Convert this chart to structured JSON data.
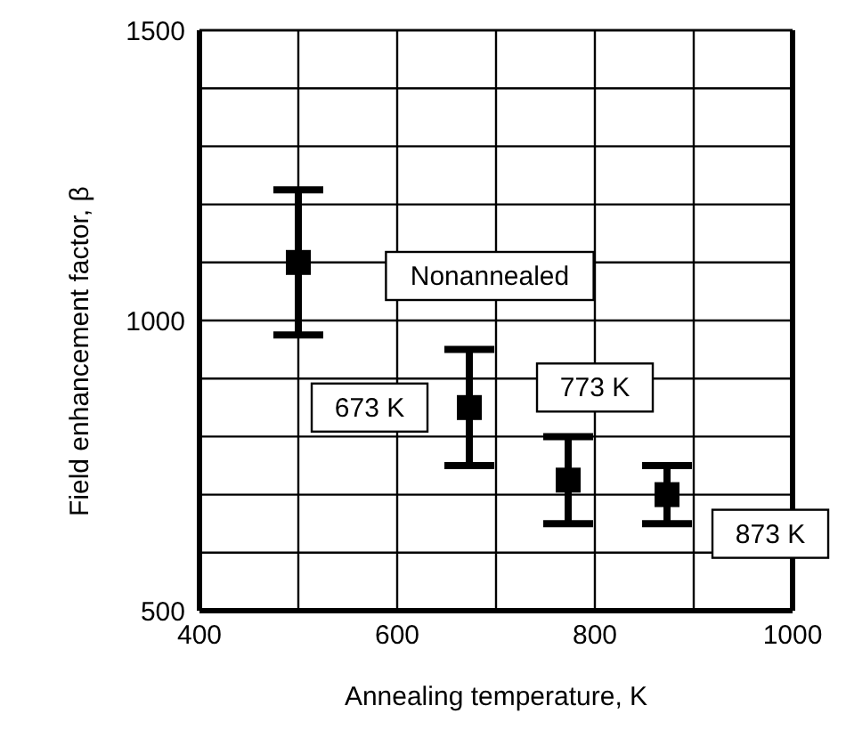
{
  "chart_data": {
    "type": "scatter",
    "xlabel": "Annealing temperature, K",
    "ylabel": "Field enhancement factor, β",
    "x": [
      500,
      673,
      773,
      873
    ],
    "values": [
      1100,
      850,
      725,
      700
    ],
    "errors": [
      125,
      100,
      75,
      50
    ],
    "color": "#000000",
    "marker": "square",
    "xlim": [
      400,
      1000
    ],
    "xticks": [
      400,
      {
        "value": 500,
        "label": null
      },
      600,
      {
        "value": 700,
        "label": null
      },
      800,
      {
        "value": 900,
        "label": null
      },
      1000
    ],
    "ylim": [
      500,
      1500
    ],
    "yticks": [
      500,
      {
        "value": 600,
        "label": null
      },
      {
        "value": 700,
        "label": null
      },
      {
        "value": 800,
        "label": null
      },
      {
        "value": 900,
        "label": null
      },
      1000,
      {
        "value": 1100,
        "label": null
      },
      {
        "value": 1200,
        "label": null
      },
      {
        "value": 1300,
        "label": null
      },
      {
        "value": 1400,
        "label": null
      },
      1500
    ],
    "grid": true,
    "annotations": [
      "Nonannealed",
      {
        "text": "673 K",
        "x": 673,
        "y": 850
      },
      {
        "text": "773 K",
        "x": 773,
        "y": 725
      },
      {
        "text": "873 K",
        "x": 873,
        "y": 700
      }
    ]
  }
}
